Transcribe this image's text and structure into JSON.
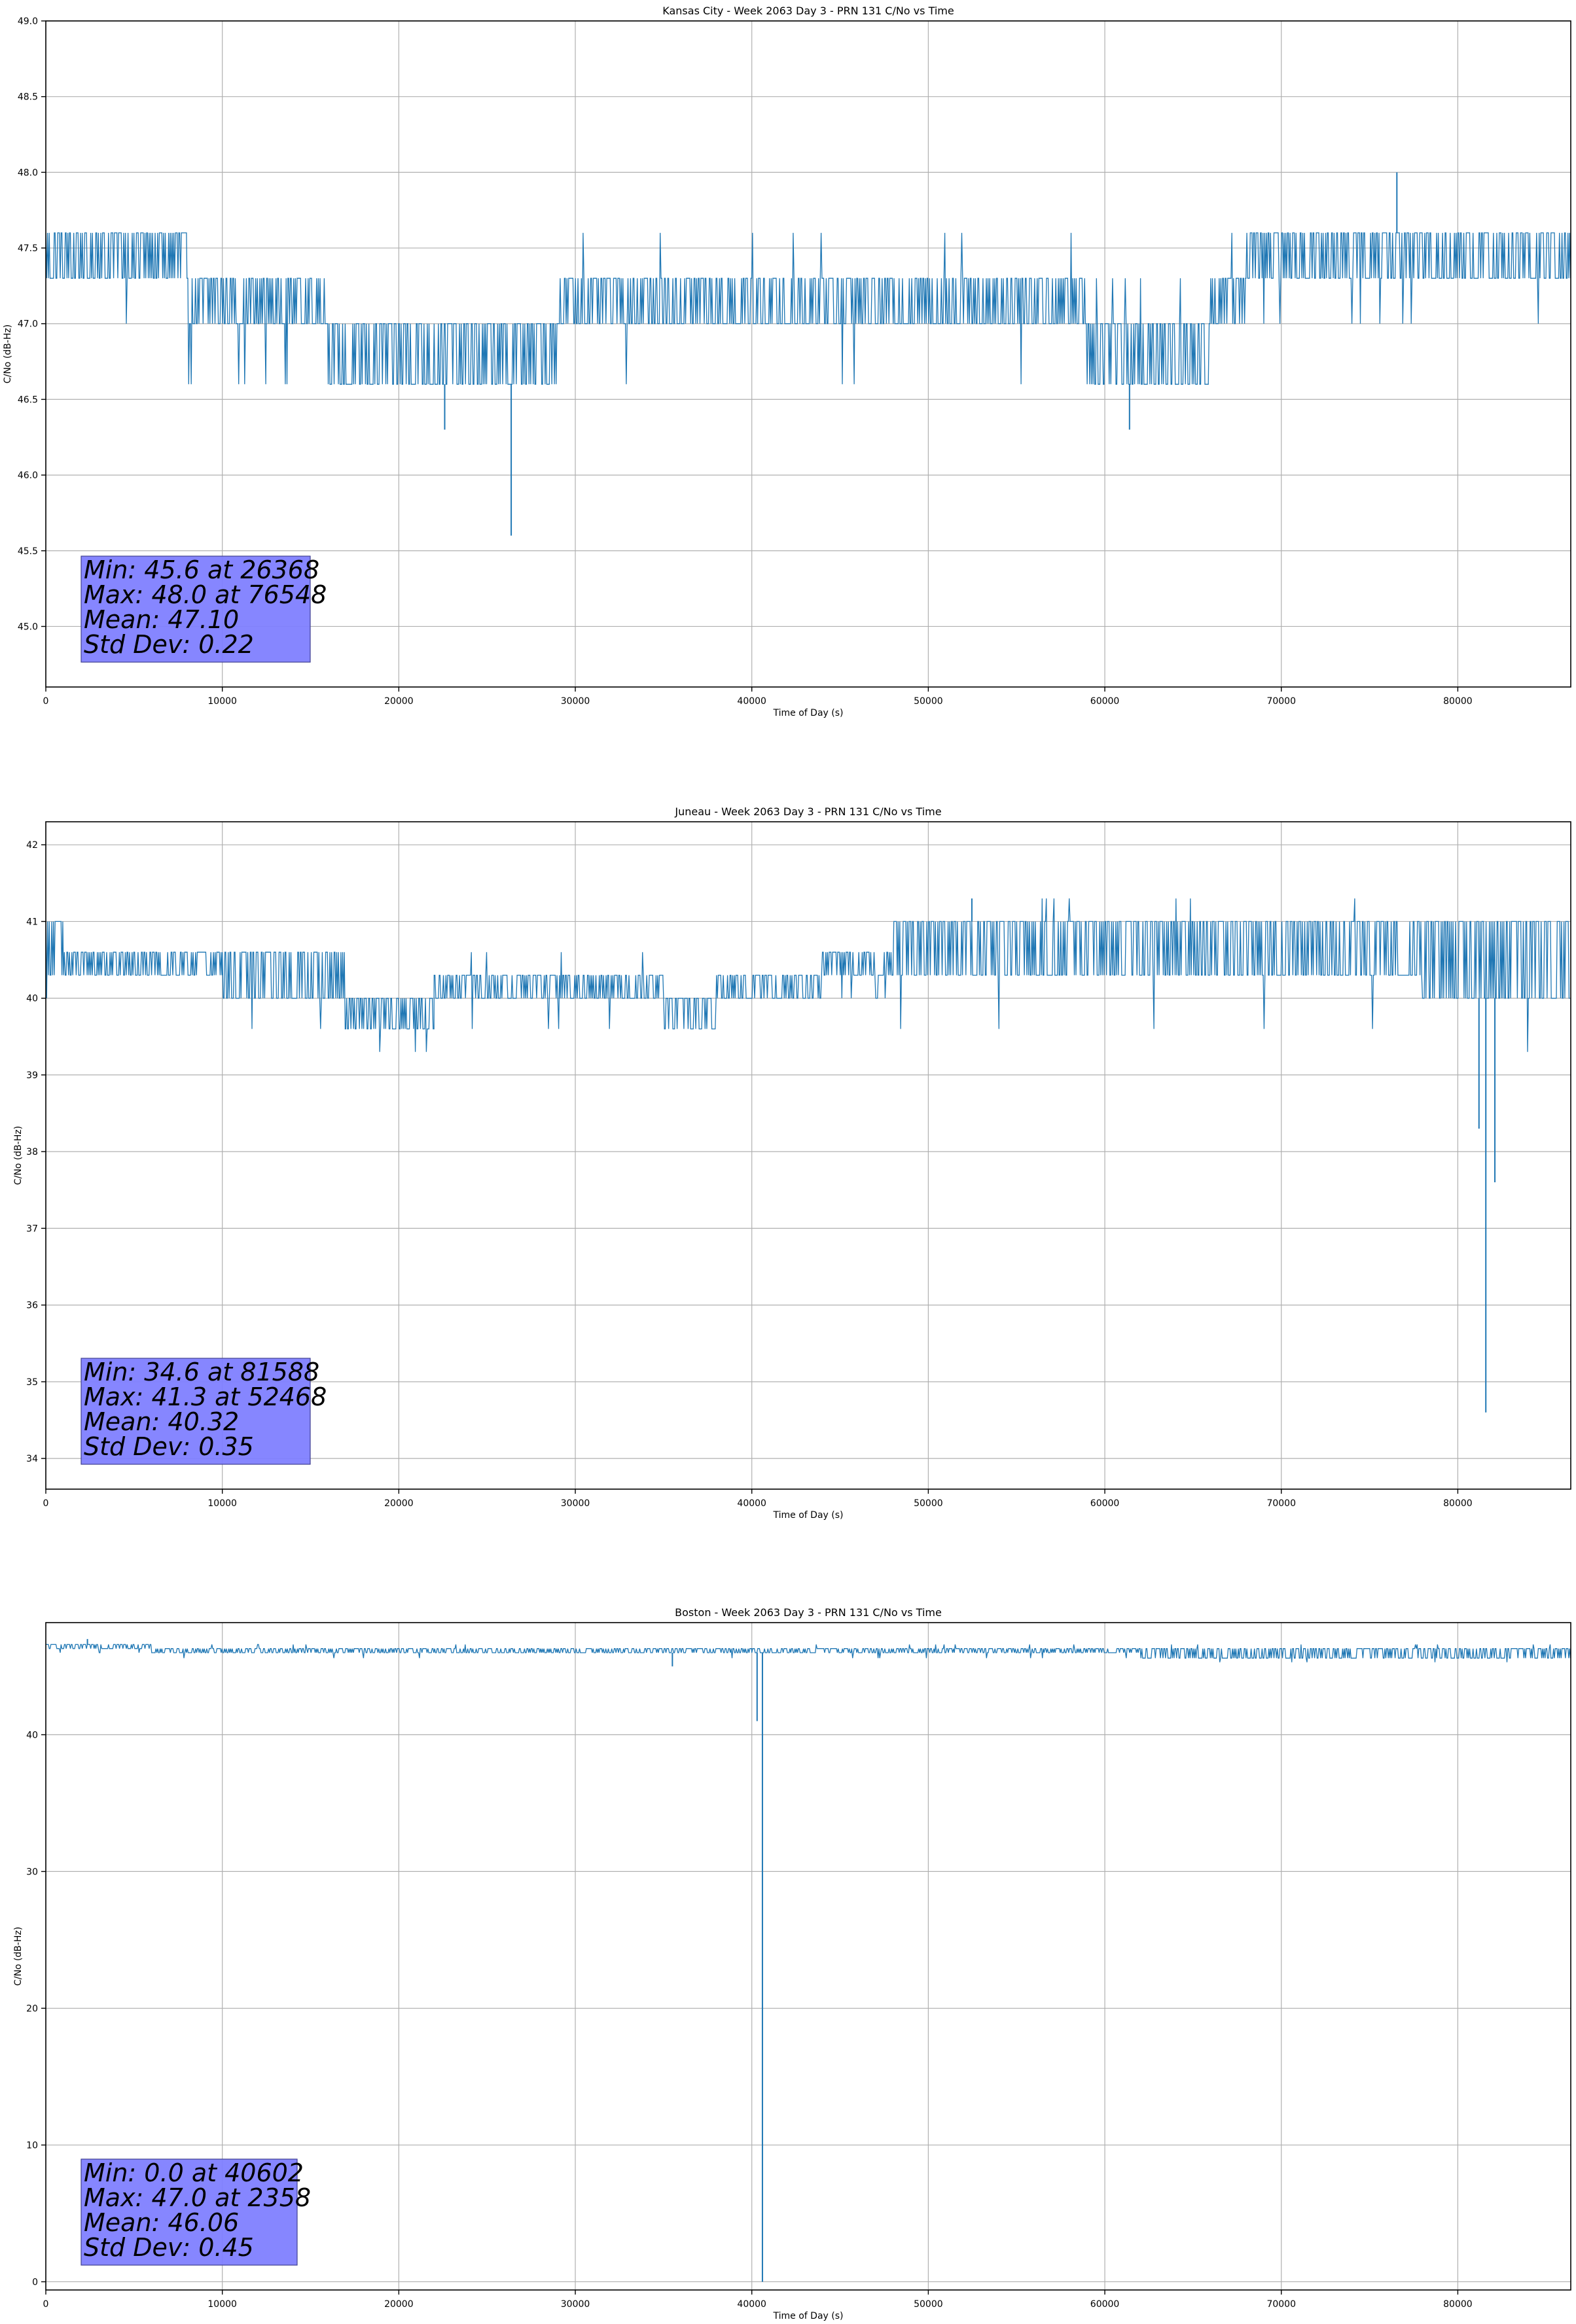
{
  "figure": {
    "colors": {
      "line": "#1f77b4",
      "grid": "#b0b0b0",
      "stats_box_fill": "#8080ff",
      "axes": "#000000",
      "background": "#ffffff"
    }
  },
  "chart_data": [
    {
      "type": "line",
      "title": "Kansas City - Week 2063 Day 3 - PRN 131 C/No vs Time",
      "xlabel": "Time of Day (s)",
      "ylabel": "C/No (dB-Hz)",
      "xlim": [
        0,
        86400
      ],
      "ylim": [
        44.6,
        49.0
      ],
      "xticks": [
        0,
        10000,
        20000,
        30000,
        40000,
        50000,
        60000,
        70000,
        80000
      ],
      "yticks": [
        45.0,
        45.5,
        46.0,
        46.5,
        47.0,
        47.5,
        48.0,
        48.5,
        49.0
      ],
      "ytick_decimals": 1,
      "grid": true,
      "stats_box": [
        "Min: 45.6 at 26368",
        "Max: 48.0 at 76548",
        "Mean: 47.10",
        "Std Dev: 0.22"
      ],
      "series": [
        {
          "values_description": "quantized C/No samples, bands per time segment",
          "segments": [
            {
              "x": [
                0,
                8000
              ],
              "lo": 47.3,
              "hi": 47.6,
              "dips": [
                47.0
              ]
            },
            {
              "x": [
                8000,
                16000
              ],
              "lo": 47.0,
              "hi": 47.3,
              "dips": [
                46.6
              ]
            },
            {
              "x": [
                16000,
                29000
              ],
              "lo": 46.6,
              "hi": 47.0,
              "dips": []
            },
            {
              "x": [
                29000,
                59000
              ],
              "lo": 47.0,
              "hi": 47.3,
              "dips": [
                46.6,
                47.6
              ]
            },
            {
              "x": [
                59000,
                66000
              ],
              "lo": 46.6,
              "hi": 47.0,
              "dips": [
                47.3
              ]
            },
            {
              "x": [
                66000,
                68000
              ],
              "lo": 47.0,
              "hi": 47.3,
              "dips": [
                47.6
              ]
            },
            {
              "x": [
                68000,
                86400
              ],
              "lo": 47.3,
              "hi": 47.6,
              "dips": [
                47.0
              ]
            }
          ],
          "spikes": [
            {
              "x": 22600,
              "y": 46.3
            },
            {
              "x": 26368,
              "y": 45.6
            },
            {
              "x": 61400,
              "y": 46.3
            },
            {
              "x": 76548,
              "y": 48.0
            }
          ]
        }
      ]
    },
    {
      "type": "line",
      "title": "Juneau - Week 2063 Day 3 - PRN 131 C/No vs Time",
      "xlabel": "Time of Day (s)",
      "ylabel": "C/No (dB-Hz)",
      "xlim": [
        0,
        86400
      ],
      "ylim": [
        33.6,
        42.3
      ],
      "xticks": [
        0,
        10000,
        20000,
        30000,
        40000,
        50000,
        60000,
        70000,
        80000
      ],
      "yticks": [
        34,
        35,
        36,
        37,
        38,
        39,
        40,
        41,
        42
      ],
      "ytick_decimals": 0,
      "grid": true,
      "stats_box": [
        "Min: 34.6 at 81588",
        "Max: 41.3 at 52468",
        "Mean: 40.32",
        "Std Dev: 0.35"
      ],
      "series": [
        {
          "values_description": "quantized C/No samples, bands per time segment",
          "segments": [
            {
              "x": [
                0,
                1000
              ],
              "lo": 40.3,
              "hi": 41.0,
              "dips": [
                40.0
              ]
            },
            {
              "x": [
                1000,
                10000
              ],
              "lo": 40.3,
              "hi": 40.6,
              "dips": [
                40.0,
                41.0
              ]
            },
            {
              "x": [
                10000,
                17000
              ],
              "lo": 40.0,
              "hi": 40.6,
              "dips": [
                39.6
              ]
            },
            {
              "x": [
                17000,
                22000
              ],
              "lo": 39.6,
              "hi": 40.0,
              "dips": [
                39.3
              ]
            },
            {
              "x": [
                22000,
                35000
              ],
              "lo": 40.0,
              "hi": 40.3,
              "dips": [
                39.6,
                40.6
              ]
            },
            {
              "x": [
                35000,
                38000
              ],
              "lo": 39.6,
              "hi": 40.0,
              "dips": [
                39.0,
                39.3
              ]
            },
            {
              "x": [
                38000,
                44000
              ],
              "lo": 40.0,
              "hi": 40.3,
              "dips": [
                39.6
              ]
            },
            {
              "x": [
                44000,
                48000
              ],
              "lo": 40.3,
              "hi": 40.6,
              "dips": [
                40.0
              ]
            },
            {
              "x": [
                48000,
                78000
              ],
              "lo": 40.3,
              "hi": 41.0,
              "dips": [
                39.6,
                41.3
              ]
            },
            {
              "x": [
                78000,
                86400
              ],
              "lo": 40.0,
              "hi": 41.0,
              "dips": [
                39.3,
                41.3
              ]
            }
          ],
          "spikes": [
            {
              "x": 81200,
              "y": 38.3
            },
            {
              "x": 81588,
              "y": 34.6
            },
            {
              "x": 82100,
              "y": 37.6
            },
            {
              "x": 52468,
              "y": 41.3
            }
          ]
        }
      ]
    },
    {
      "type": "line",
      "title": "Boston - Week 2063 Day 3 - PRN 131 C/No vs Time",
      "xlabel": "Time of Day (s)",
      "ylabel": "C/No (dB-Hz)",
      "xlim": [
        0,
        86400
      ],
      "ylim": [
        -0.6,
        48.2
      ],
      "xticks": [
        0,
        10000,
        20000,
        30000,
        40000,
        50000,
        60000,
        70000,
        80000
      ],
      "yticks": [
        0,
        10,
        20,
        30,
        40
      ],
      "ytick_decimals": 0,
      "grid": true,
      "stats_box": [
        "Min: 0.0 at 40602",
        "Max: 47.0 at 2358",
        "Mean: 46.06",
        "Std Dev: 0.45"
      ],
      "series": [
        {
          "values_description": "quantized C/No samples, bands per time segment",
          "segments": [
            {
              "x": [
                0,
                6000
              ],
              "lo": 46.3,
              "hi": 46.6,
              "dips": [
                46.0
              ]
            },
            {
              "x": [
                6000,
                40000
              ],
              "lo": 46.0,
              "hi": 46.3,
              "dips": [
                45.6,
                46.6
              ]
            },
            {
              "x": [
                40000,
                62000
              ],
              "lo": 46.0,
              "hi": 46.3,
              "dips": [
                45.6,
                46.6
              ]
            },
            {
              "x": [
                62000,
                86400
              ],
              "lo": 45.6,
              "hi": 46.3,
              "dips": [
                45.3,
                46.6
              ]
            }
          ],
          "spikes": [
            {
              "x": 2358,
              "y": 47.0
            },
            {
              "x": 35500,
              "y": 45.0
            },
            {
              "x": 40300,
              "y": 41.0
            },
            {
              "x": 40602,
              "y": 0.0
            }
          ]
        }
      ]
    }
  ]
}
